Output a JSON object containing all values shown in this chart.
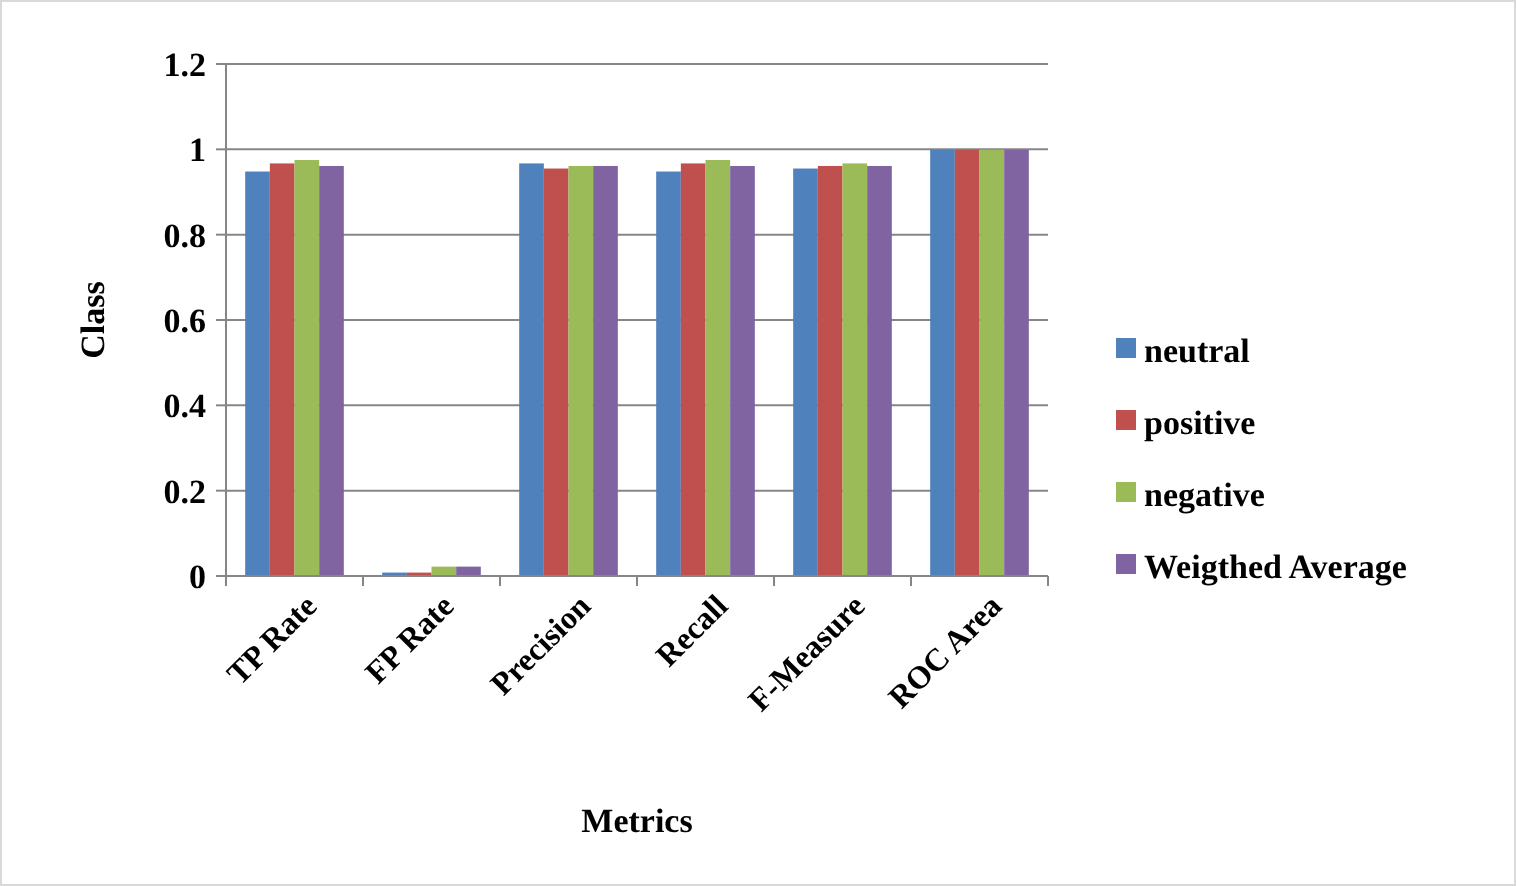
{
  "chart_data": {
    "type": "bar",
    "xlabel": "Metrics",
    "ylabel": "Class",
    "categories": [
      "TP Rate",
      "FP Rate",
      "Precision",
      "Recall",
      "F-Measure",
      "ROC Area"
    ],
    "series": [
      {
        "name": "neutral",
        "color": "#4f81bd",
        "values": [
          0.948,
          0.008,
          0.967,
          0.948,
          0.955,
          0.999
        ]
      },
      {
        "name": "positive",
        "color": "#c0504d",
        "values": [
          0.967,
          0.008,
          0.955,
          0.967,
          0.961,
          0.999
        ]
      },
      {
        "name": "negative",
        "color": "#9bbb59",
        "values": [
          0.975,
          0.022,
          0.961,
          0.975,
          0.967,
          0.999
        ]
      },
      {
        "name": "Weigthed Average",
        "color": "#8064a2",
        "values": [
          0.961,
          0.022,
          0.961,
          0.961,
          0.961,
          0.999
        ]
      }
    ],
    "ylim": [
      0,
      1.2
    ],
    "yticks": [
      0,
      0.2,
      0.4,
      0.6,
      0.8,
      1,
      1.2
    ],
    "grid": "y",
    "legend": "right"
  }
}
